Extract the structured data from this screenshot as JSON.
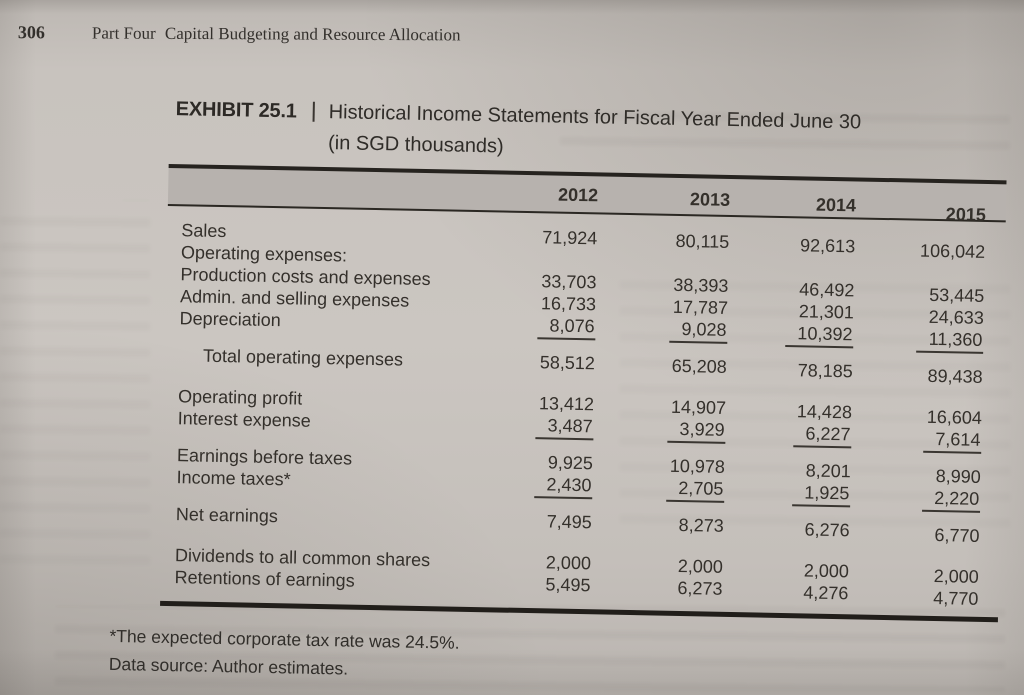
{
  "running_head": {
    "page_number": "306",
    "part_label": "Part Four",
    "part_title": "Capital Budgeting and Resource Allocation"
  },
  "exhibit": {
    "label": "EXHIBIT 25.1",
    "title": "Historical Income Statements for Fiscal Year Ended June 30",
    "subtitle": "(in SGD thousands)"
  },
  "table": {
    "columns": [
      "2012",
      "2013",
      "2014",
      "2015"
    ],
    "rows": [
      {
        "label": "Sales",
        "values": [
          "71,924",
          "80,115",
          "92,613",
          "106,042"
        ]
      },
      {
        "label": "Operating expenses:",
        "values": [
          "",
          "",
          "",
          ""
        ]
      },
      {
        "label": "Production costs and expenses",
        "values": [
          "33,703",
          "38,393",
          "46,492",
          "53,445"
        ]
      },
      {
        "label": "Admin. and selling expenses",
        "values": [
          "16,733",
          "17,787",
          "21,301",
          "24,633"
        ]
      },
      {
        "label": "Depreciation",
        "values": [
          "8,076",
          "9,028",
          "10,392",
          "11,360"
        ]
      },
      {
        "label": "Total operating expenses",
        "values": [
          "58,512",
          "65,208",
          "78,185",
          "89,438"
        ]
      },
      {
        "label": "Operating profit",
        "values": [
          "13,412",
          "14,907",
          "14,428",
          "16,604"
        ]
      },
      {
        "label": "Interest expense",
        "values": [
          "3,487",
          "3,929",
          "6,227",
          "7,614"
        ]
      },
      {
        "label": "Earnings before taxes",
        "values": [
          "9,925",
          "10,978",
          "8,201",
          "8,990"
        ]
      },
      {
        "label": "Income taxes*",
        "values": [
          "2,430",
          "2,705",
          "1,925",
          "2,220"
        ]
      },
      {
        "label": "Net earnings",
        "values": [
          "7,495",
          "8,273",
          "6,276",
          "6,770"
        ]
      },
      {
        "label": "Dividends to all common shares",
        "values": [
          "2,000",
          "2,000",
          "2,000",
          "2,000"
        ]
      },
      {
        "label": "Retentions of earnings",
        "values": [
          "5,495",
          "6,273",
          "4,276",
          "4,770"
        ]
      }
    ]
  },
  "footnotes": {
    "tax_note": "*The expected corporate tax rate was 24.5%.",
    "source_note": "Data source: Author estimates."
  },
  "colors": {
    "page_background": "#c8c3be",
    "header_band": "#b7b2ae",
    "ink": "#34302b",
    "rule": "#26231f"
  }
}
